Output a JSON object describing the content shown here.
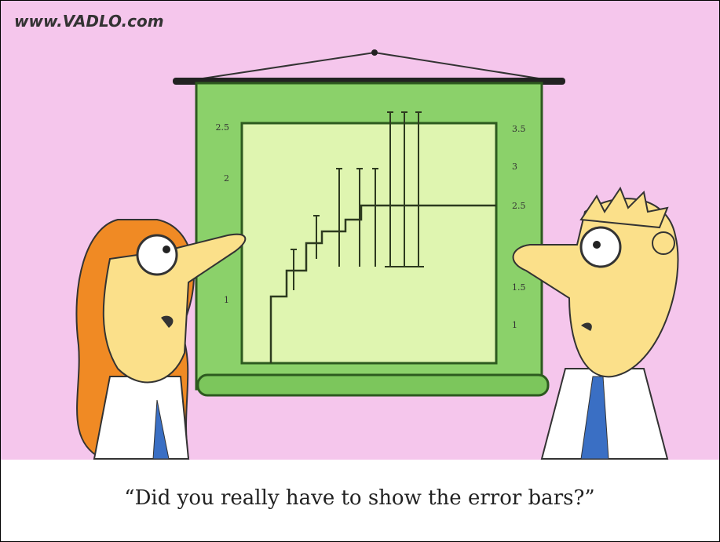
{
  "watermark": "www.VADLO.com",
  "poster": {
    "left_ticks": [
      "2.5",
      "2",
      "1"
    ],
    "right_ticks": [
      "3.5",
      "3",
      "2.5",
      "1.5",
      "1"
    ]
  },
  "caption": "“Did you really have to show the error bars?”"
}
